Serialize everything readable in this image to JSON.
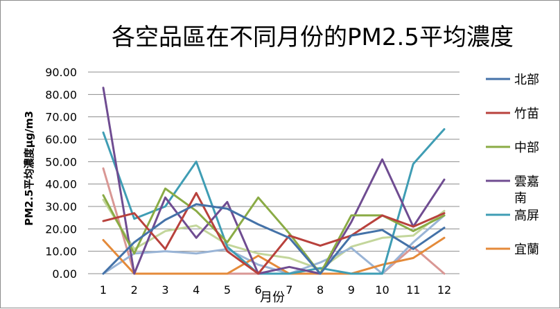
{
  "chart_data": {
    "type": "line",
    "title": "各空品區在不同月份的PM2.5平均濃度",
    "xlabel": "月份",
    "ylabel": "PM2.5平均濃度μg/m3",
    "x": [
      1,
      2,
      3,
      4,
      5,
      6,
      7,
      8,
      9,
      10,
      11,
      12
    ],
    "ylim": [
      0,
      90
    ],
    "yticks": [
      "0.00",
      "10.00",
      "20.00",
      "30.00",
      "40.00",
      "50.00",
      "60.00",
      "70.00",
      "80.00",
      "90.00"
    ],
    "grid": true,
    "legend_position": "right",
    "series": [
      {
        "name": "北部",
        "color": "#4472a8",
        "values": [
          0,
          14,
          24,
          31,
          29,
          22,
          16,
          0,
          17,
          19.5,
          11,
          20.5
        ]
      },
      {
        "name": "竹苗",
        "color": "#b8413c",
        "values": [
          23.5,
          27,
          11,
          36,
          10,
          0,
          17,
          12.5,
          17,
          26,
          21,
          27
        ]
      },
      {
        "name": "中部",
        "color": "#8aab45",
        "values": [
          35,
          9,
          38,
          28,
          14,
          34,
          18,
          0,
          26,
          26,
          19,
          26
        ]
      },
      {
        "name": "雲嘉南",
        "color": "#6f4c91",
        "values": [
          83,
          0,
          34,
          16,
          32,
          0,
          3,
          0,
          23,
          51,
          21,
          42
        ]
      },
      {
        "name": "高屏",
        "color": "#3f9db4",
        "values": [
          63,
          24.5,
          30,
          50,
          12,
          0,
          0,
          2.5,
          0,
          0,
          49,
          64.5
        ]
      },
      {
        "name": "宜蘭",
        "color": "#e48a3a",
        "values": [
          15,
          0,
          0,
          0,
          0,
          8,
          0,
          0,
          0,
          4,
          7,
          16
        ]
      },
      {
        "name": "",
        "color": "#99b4d6",
        "values": [
          0,
          9,
          10,
          9,
          11,
          4,
          0,
          5,
          11.5,
          0,
          14,
          26
        ]
      },
      {
        "name": "",
        "color": "#d99794",
        "values": [
          47,
          0,
          0,
          0,
          0,
          0,
          0,
          0,
          0,
          0,
          12,
          0
        ]
      },
      {
        "name": "",
        "color": "#c3d69b",
        "values": [
          33,
          11,
          19,
          21.5,
          13,
          9,
          7,
          2,
          12,
          16,
          17,
          28
        ]
      }
    ]
  }
}
